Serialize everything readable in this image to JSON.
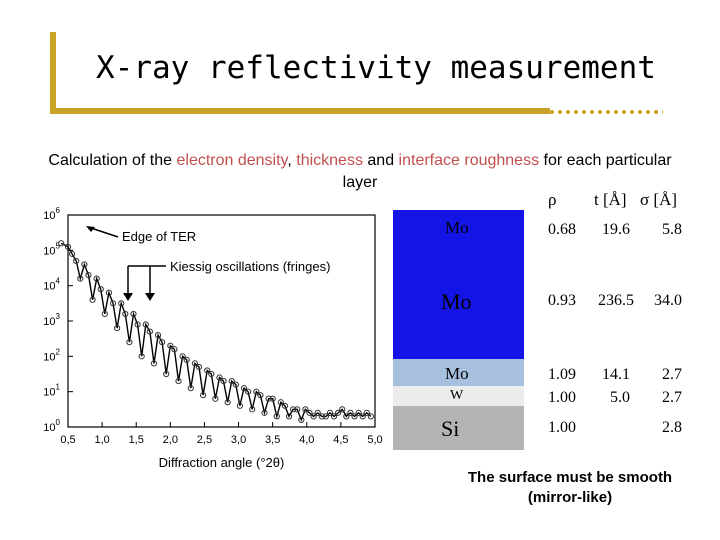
{
  "title": "X-ray reflectivity measurement",
  "subtitle": {
    "part1": "Calculation of the ",
    "electron_density": "electron density",
    "comma": ", ",
    "thickness": "thickness",
    "and": " and ",
    "interface_roughness": "interface roughness",
    "part2": " for each particular layer"
  },
  "chart_data": {
    "type": "scatter",
    "xlabel": "Diffraction angle (°2θ)",
    "ylabel": "",
    "xlim": [
      0.5,
      5.0
    ],
    "ylim_log10": [
      0,
      6
    ],
    "y_scale": "log",
    "x_ticks": [
      "0,5",
      "1,0",
      "1,5",
      "2,0",
      "2,5",
      "3,0",
      "3,5",
      "4,0",
      "4,5",
      "5,0"
    ],
    "y_ticks": [
      "10^0",
      "10^1",
      "10^2",
      "10^3",
      "10^4",
      "10^5",
      "10^6"
    ],
    "annotations": [
      "Edge of TER",
      "Kiessig oscillations (fringes)"
    ],
    "series": [
      {
        "x": [
          0.4,
          0.5,
          0.56,
          0.62,
          0.68,
          0.74,
          0.8,
          0.86,
          0.92,
          0.98,
          1.04,
          1.1,
          1.16,
          1.22,
          1.28,
          1.34,
          1.4,
          1.46,
          1.52,
          1.58,
          1.64,
          1.7,
          1.76,
          1.82,
          1.88,
          1.94,
          2.0,
          2.06,
          2.12,
          2.18,
          2.24,
          2.3,
          2.36,
          2.42,
          2.48,
          2.54,
          2.6,
          2.66,
          2.72,
          2.78,
          2.84,
          2.9,
          2.96,
          3.02,
          3.08,
          3.14,
          3.2,
          3.26,
          3.32,
          3.38,
          3.44,
          3.5,
          3.56,
          3.62,
          3.68,
          3.74,
          3.8,
          3.86,
          3.92,
          3.98,
          4.04,
          4.1,
          4.16,
          4.22,
          4.28,
          4.34,
          4.4,
          4.46,
          4.52,
          4.58,
          4.64,
          4.7,
          4.76,
          4.82,
          4.88,
          4.94
        ],
        "y_log10": [
          5.2,
          5.1,
          4.9,
          4.7,
          4.2,
          4.6,
          4.3,
          3.6,
          4.2,
          3.9,
          3.2,
          3.8,
          3.5,
          2.8,
          3.5,
          3.2,
          2.4,
          3.2,
          2.9,
          2.0,
          2.9,
          2.7,
          1.8,
          2.6,
          2.4,
          1.5,
          2.3,
          2.2,
          1.3,
          2.0,
          1.9,
          1.1,
          1.8,
          1.7,
          0.9,
          1.6,
          1.5,
          0.8,
          1.4,
          1.3,
          0.7,
          1.3,
          1.2,
          0.6,
          1.1,
          1.0,
          0.5,
          1.0,
          0.9,
          0.4,
          0.8,
          0.8,
          0.3,
          0.7,
          0.6,
          0.3,
          0.5,
          0.5,
          0.2,
          0.5,
          0.4,
          0.3,
          0.4,
          0.3,
          0.3,
          0.4,
          0.3,
          0.4,
          0.5,
          0.3,
          0.4,
          0.3,
          0.4,
          0.3,
          0.4,
          0.3
        ]
      }
    ]
  },
  "table": {
    "headers": {
      "rho": "ρ",
      "t": "t [Å]",
      "sigma": "σ [Å]"
    },
    "rows": [
      {
        "layer": "Mo",
        "rho": "0.68",
        "t": "19.6",
        "sigma": "5.8"
      },
      {
        "layer": "Mo",
        "rho": "0.93",
        "t": "236.5",
        "sigma": "34.0"
      },
      {
        "layer": "Mo",
        "rho": "1.09",
        "t": "14.1",
        "sigma": "2.7"
      },
      {
        "layer": "W",
        "rho": "1.00",
        "t": "5.0",
        "sigma": "2.7"
      },
      {
        "layer": "Si",
        "rho": "1.00",
        "t": "",
        "sigma": "2.8"
      }
    ]
  },
  "colors": {
    "title_bar": "#c9a227",
    "highlight": "#c0504d",
    "mo_layer": "#1414e6",
    "mo_thin_layer": "#a7c0e0",
    "w_layer": "#ececec",
    "si_layer": "#b4b4b4"
  },
  "note": "The surface must be smooth (mirror-like)"
}
